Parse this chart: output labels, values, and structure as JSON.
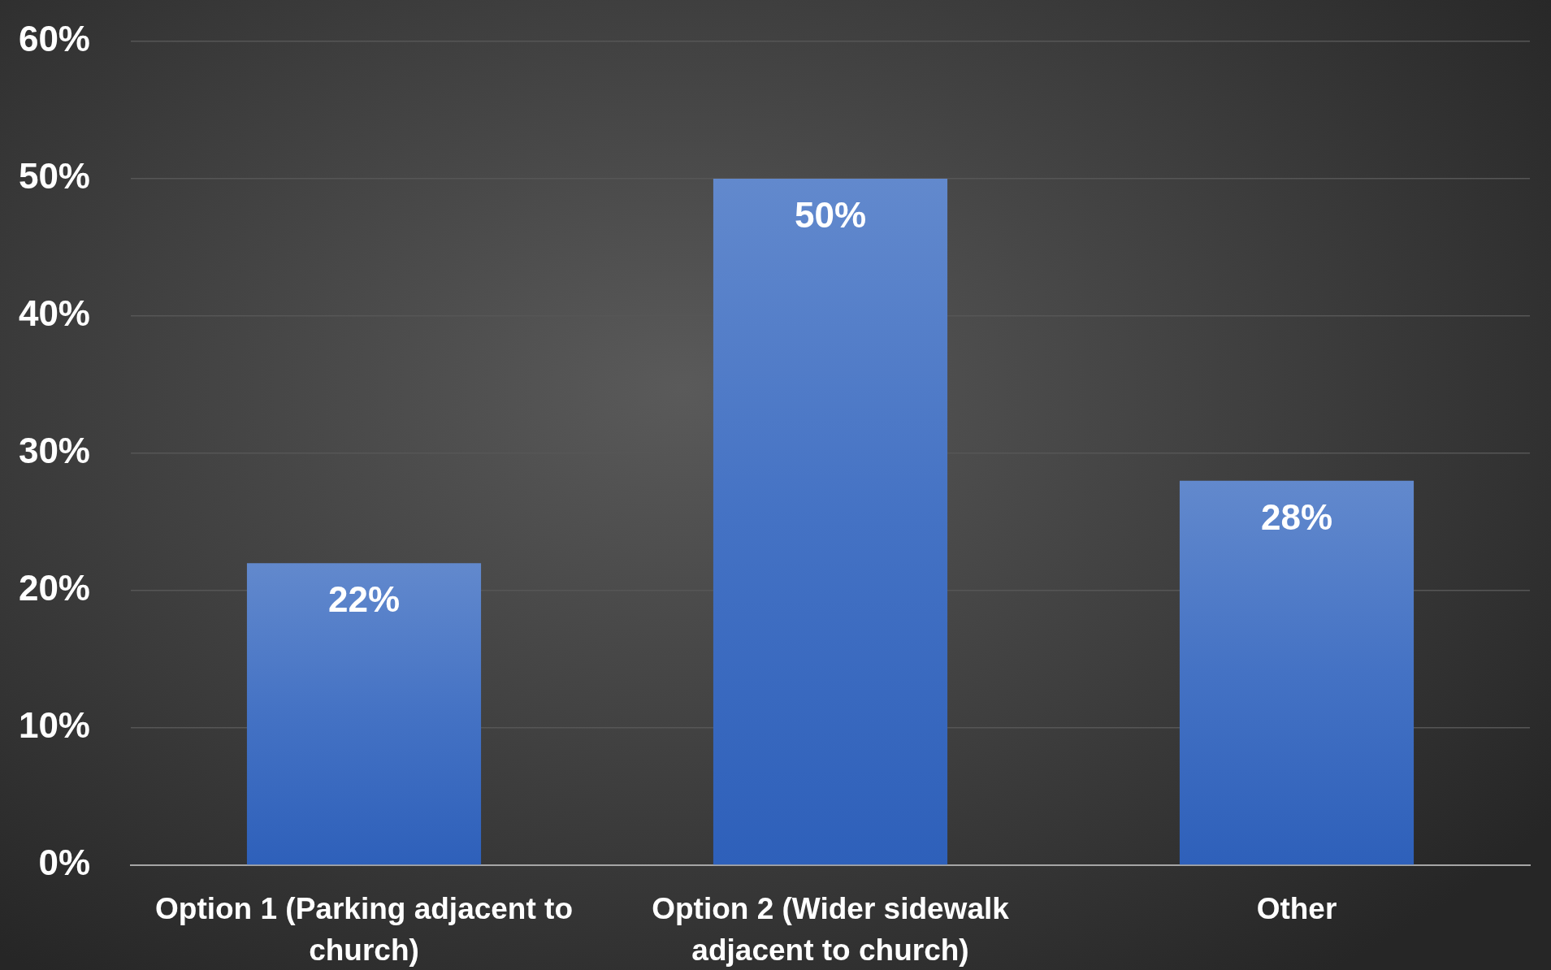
{
  "chart_data": {
    "type": "bar",
    "categories": [
      "Option 1 (Parking adjacent to church)",
      "Option 2 (Wider sidewalk adjacent to church)",
      "Other"
    ],
    "values": [
      22,
      50,
      28
    ],
    "color": "#4472c4",
    "value_labels": [
      "22%",
      "50%",
      "28%"
    ],
    "ylim": [
      0,
      60
    ],
    "yticks": [
      {
        "value": 0,
        "label": "0%"
      },
      {
        "value": 10,
        "label": "10%"
      },
      {
        "value": 20,
        "label": "20%"
      },
      {
        "value": 30,
        "label": "30%"
      },
      {
        "value": 40,
        "label": "40%"
      },
      {
        "value": 50,
        "label": "50%"
      },
      {
        "value": 60,
        "label": "60%"
      }
    ],
    "grid": "y"
  }
}
